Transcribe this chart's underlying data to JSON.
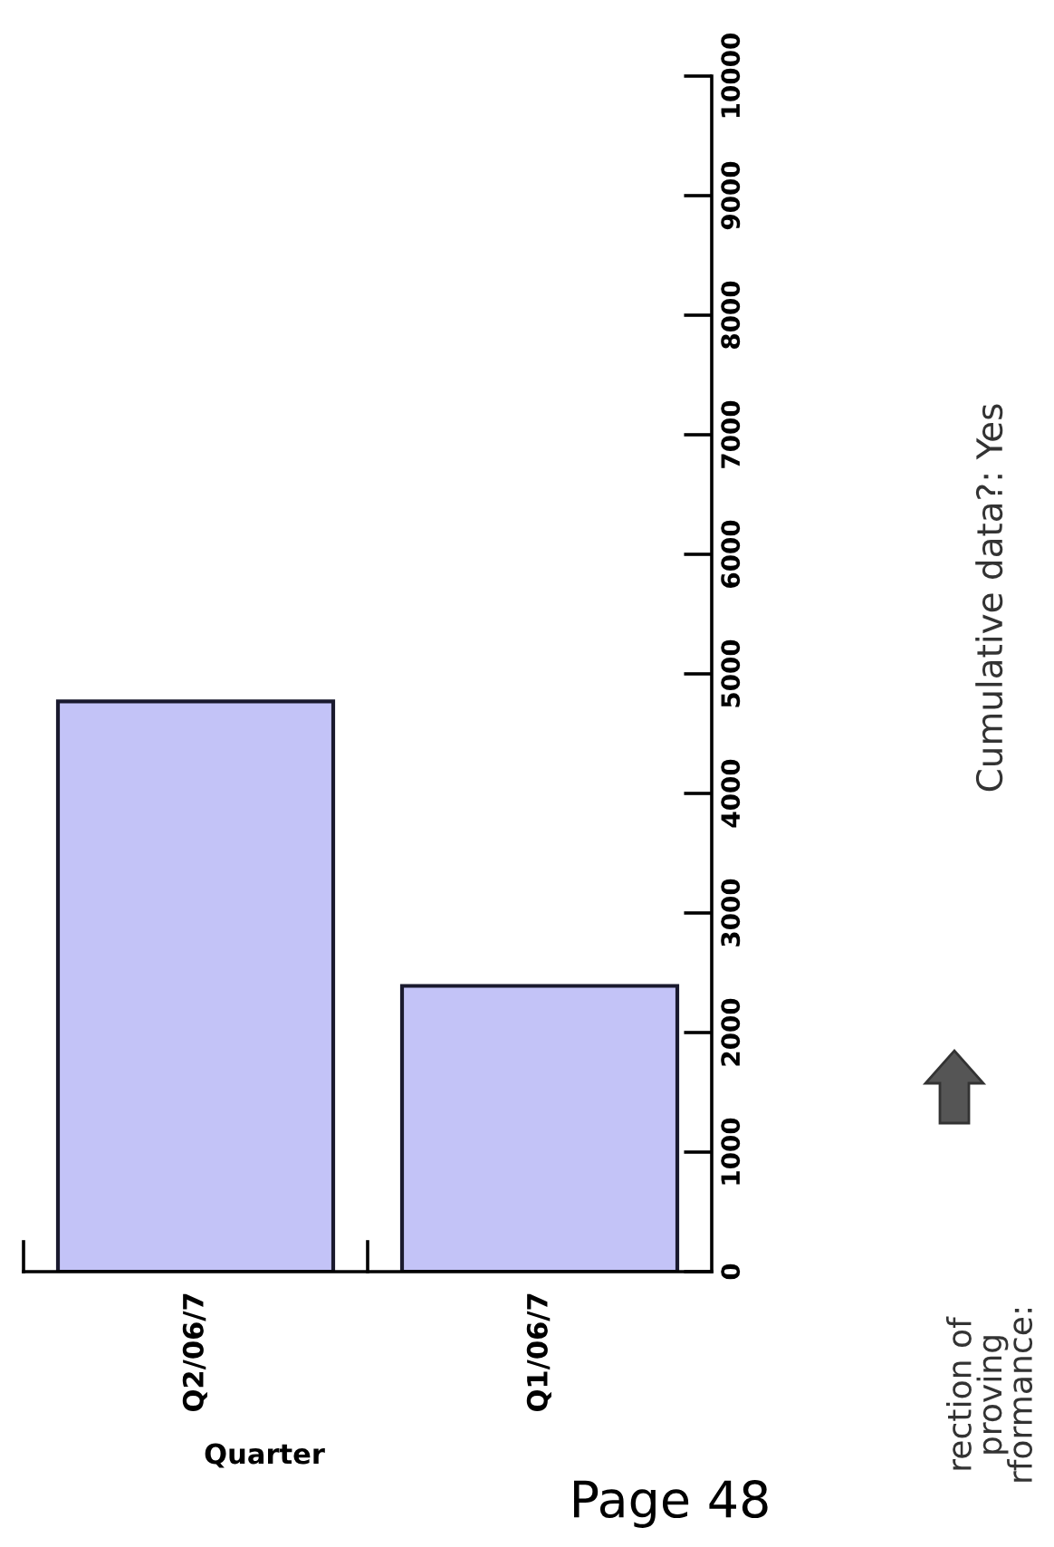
{
  "chart_data": {
    "type": "bar",
    "xlabel": "Quarter",
    "categories": [
      "Q2/06/7",
      "Q1/06/7"
    ],
    "values": [
      4770,
      2390
    ],
    "color": "#c3c3f7",
    "ylim": [
      0,
      10000
    ],
    "yticks": [
      0,
      1000,
      2000,
      3000,
      4000,
      5000,
      6000,
      7000,
      8000,
      9000,
      10000
    ],
    "grid": false,
    "annotations": [
      "Cumulative data?: Yes",
      "rection of\nproving\nrformance:",
      "Page 48"
    ]
  }
}
